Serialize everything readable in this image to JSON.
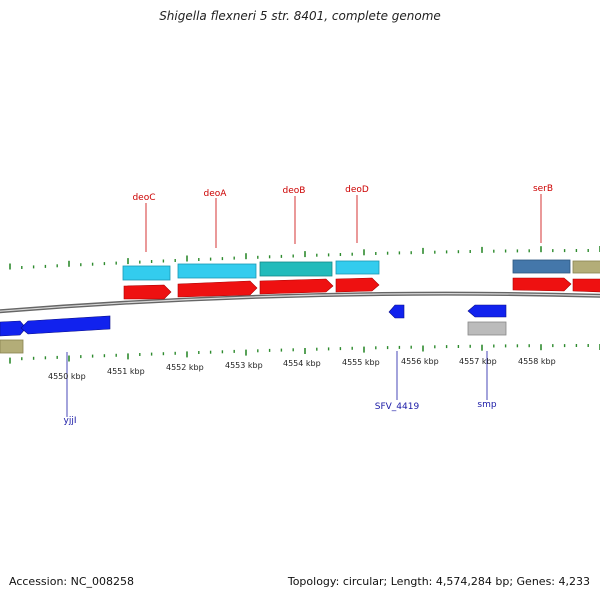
{
  "title": "Shigella flexneri 5 str. 8401, complete genome",
  "footer": {
    "accession": "Accession: NC_008258",
    "stats": "Topology: circular; Length: 4,574,284 bp; Genes: 4,233"
  },
  "kbp_labels": [
    "4550 kbp",
    "4551 kbp",
    "4552 kbp",
    "4553 kbp",
    "4554 kbp",
    "4555 kbp",
    "4556 kbp",
    "4557 kbp",
    "4558 kbp"
  ],
  "gene_labels_top": [
    "deoC",
    "deoA",
    "deoB",
    "deoD",
    "serB"
  ],
  "gene_labels_bottom": [
    "yjjI",
    "SFV_4419",
    "smp"
  ],
  "colors": {
    "backbone": "#8a8a8a",
    "tick": "#2e8b2e",
    "cds_red": "#ee1111",
    "gene_cyan": "#33ccee",
    "gene_teal": "#22bbbb",
    "gene_steel": "#4477aa",
    "gene_khaki": "#b3ad78",
    "gene_blue": "#1122ee",
    "gene_gray": "#bbbbbb"
  }
}
